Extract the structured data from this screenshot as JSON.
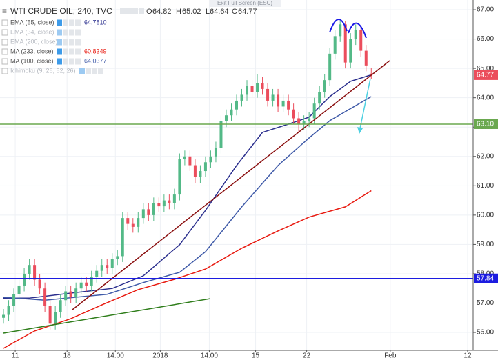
{
  "toolbar": {
    "exit_full_screen": "Exit Full Screen (ESC)"
  },
  "chart_data": {
    "type": "candlestick",
    "title": "WTI CRUDE OIL, 240, TVC",
    "ohlc_labels": [
      "O",
      "H",
      "L",
      "C"
    ],
    "open": [
      56.5,
      56.6,
      56.9,
      57.3,
      57.6,
      58.0,
      58.3,
      57.8,
      57.5,
      56.9,
      56.3,
      56.7,
      57.1,
      57.4,
      57.2,
      57.5,
      57.7,
      57.6,
      57.9,
      58.1,
      58.3,
      58.2,
      58.5,
      58.6,
      59.9,
      59.7,
      59.6,
      59.9,
      60.2,
      60.0,
      60.4,
      60.3,
      60.5,
      60.4,
      60.7,
      61.9,
      62.0,
      61.7,
      61.3,
      61.5,
      61.8,
      62.0,
      62.3,
      63.2,
      63.4,
      63.6,
      63.9,
      64.1,
      64.4,
      64.2,
      64.5,
      64.3,
      63.9,
      64.1,
      63.7,
      63.9,
      63.6,
      63.3,
      63.1,
      63.2,
      63.3,
      63.8,
      64.2,
      64.6,
      65.5,
      66.1,
      66.5,
      65.2,
      66.0,
      66.3,
      65.6,
      64.82
    ],
    "high": [
      56.8,
      57.1,
      57.5,
      57.8,
      58.2,
      58.5,
      58.5,
      58.0,
      57.7,
      57.1,
      56.9,
      57.3,
      57.6,
      57.6,
      57.7,
      57.9,
      57.9,
      58.1,
      58.3,
      58.5,
      58.5,
      58.7,
      58.8,
      60.1,
      60.1,
      59.9,
      60.1,
      60.4,
      60.4,
      60.6,
      60.6,
      60.7,
      60.7,
      60.9,
      62.1,
      62.2,
      62.2,
      61.9,
      61.7,
      62.0,
      62.2,
      62.5,
      63.4,
      63.6,
      63.8,
      64.1,
      64.3,
      64.6,
      64.6,
      64.8,
      64.7,
      64.5,
      64.3,
      64.3,
      64.1,
      64.1,
      63.8,
      63.5,
      63.4,
      63.5,
      64.0,
      64.4,
      64.8,
      65.7,
      66.3,
      66.6,
      66.6,
      66.2,
      66.5,
      66.4,
      65.8,
      65.02
    ],
    "low": [
      56.3,
      56.4,
      56.7,
      57.1,
      57.4,
      57.8,
      57.6,
      57.3,
      56.7,
      56.1,
      56.1,
      56.5,
      56.9,
      57.0,
      57.0,
      57.3,
      57.4,
      57.4,
      57.7,
      57.9,
      58.0,
      58.0,
      58.3,
      58.4,
      59.5,
      59.4,
      59.4,
      59.7,
      59.8,
      59.8,
      60.1,
      60.1,
      60.2,
      60.2,
      60.5,
      61.7,
      61.5,
      61.1,
      61.1,
      61.3,
      61.6,
      61.8,
      62.1,
      63.0,
      63.2,
      63.4,
      63.7,
      63.9,
      64.0,
      64.0,
      64.1,
      63.7,
      63.7,
      63.5,
      63.5,
      63.4,
      63.1,
      62.8,
      62.9,
      63.0,
      63.1,
      63.6,
      64.0,
      64.4,
      65.3,
      65.9,
      65.0,
      65.0,
      65.8,
      65.4,
      64.9,
      64.64
    ],
    "close": [
      56.6,
      56.9,
      57.3,
      57.6,
      58.0,
      58.3,
      57.8,
      57.5,
      56.9,
      56.3,
      56.7,
      57.1,
      57.4,
      57.2,
      57.5,
      57.7,
      57.6,
      57.9,
      58.1,
      58.3,
      58.2,
      58.5,
      58.6,
      59.9,
      59.7,
      59.6,
      59.9,
      60.2,
      60.0,
      60.4,
      60.3,
      60.5,
      60.4,
      60.7,
      61.9,
      62.0,
      61.7,
      61.3,
      61.5,
      61.8,
      62.0,
      62.3,
      63.2,
      63.4,
      63.6,
      63.9,
      64.1,
      64.4,
      64.2,
      64.5,
      64.3,
      63.9,
      64.1,
      63.7,
      63.9,
      63.6,
      63.3,
      63.1,
      63.2,
      63.3,
      63.8,
      64.2,
      64.6,
      65.5,
      66.1,
      66.5,
      65.2,
      66.0,
      66.3,
      65.6,
      65.1,
      64.77
    ],
    "up_color": "#53b987",
    "down_color": "#eb4d5c",
    "indicators": [
      {
        "name": "EMA (55, close)",
        "value": 64.781,
        "value_label": "64.7810",
        "color": "#2b2f8e",
        "visible": true,
        "x": [
          0,
          5,
          13,
          21,
          27,
          34,
          39,
          45,
          50,
          55,
          59,
          63,
          67,
          71
        ],
        "values": [
          57.17,
          57.17,
          57.34,
          57.5,
          57.93,
          58.99,
          60.16,
          61.69,
          62.82,
          63.1,
          63.34,
          64.04,
          64.56,
          64.78
        ]
      },
      {
        "name": "EMA (34, close)",
        "visible": false
      },
      {
        "name": "EMA (200, close)",
        "visible": false
      },
      {
        "name": "MA (233, close)",
        "value": 60.8349,
        "value_label": "60.8349",
        "color": "#e8190f",
        "visible": true,
        "x": [
          0,
          6,
          13,
          19,
          26,
          33,
          39,
          46,
          53,
          59,
          66,
          71
        ],
        "values": [
          55.46,
          56.05,
          56.47,
          56.94,
          57.46,
          57.81,
          58.16,
          58.87,
          59.46,
          59.93,
          60.28,
          60.83
        ]
      },
      {
        "name": "MA (100, close)",
        "value": 64.0377,
        "value_label": "64.0377",
        "color": "#3f5aa8",
        "visible": true,
        "x": [
          0,
          8,
          20,
          27,
          34,
          39,
          46,
          53,
          59,
          63,
          71
        ],
        "values": [
          57.2,
          57.1,
          57.3,
          57.7,
          58.05,
          58.75,
          60.28,
          61.69,
          62.63,
          63.22,
          64.04
        ]
      },
      {
        "name": "Ichimoku (9, 26, 52, 26)",
        "visible": false
      }
    ],
    "horizontal_lines": [
      {
        "value": 63.1,
        "label": "63.10",
        "color": "#6aa84f"
      },
      {
        "value": 57.84,
        "label": "57.84",
        "color": "#1c1ce0"
      }
    ],
    "xlim": [
      -0.67,
      90.67
    ],
    "xticks": [
      {
        "value": 2.27,
        "label": "11"
      },
      {
        "value": 12.27,
        "label": "18"
      },
      {
        "value": 21.6,
        "label": "14:00"
      },
      {
        "value": 30.27,
        "label": "2018"
      },
      {
        "value": 39.73,
        "label": "14:00"
      },
      {
        "value": 48.67,
        "label": "15"
      },
      {
        "value": 58.53,
        "label": "22"
      },
      {
        "value": 74.67,
        "label": "Feb"
      },
      {
        "value": 89.6,
        "label": "12"
      }
    ],
    "ylim": [
      55.39,
      67.33
    ],
    "yticks": [
      {
        "value": 56,
        "label": "56.00"
      },
      {
        "value": 57,
        "label": "57.00"
      },
      {
        "value": 58,
        "label": "58.00"
      },
      {
        "value": 59,
        "label": "59.00"
      },
      {
        "value": 60,
        "label": "60.00"
      },
      {
        "value": 61,
        "label": "61.00"
      },
      {
        "value": 62,
        "label": "62.00"
      },
      {
        "value": 63,
        "label": "63.00"
      },
      {
        "value": 64,
        "label": "64.00"
      },
      {
        "value": 65,
        "label": "65.00"
      },
      {
        "value": 66,
        "label": "66.00"
      },
      {
        "value": 67,
        "label": "67.00"
      }
    ],
    "grid": true
  }
}
